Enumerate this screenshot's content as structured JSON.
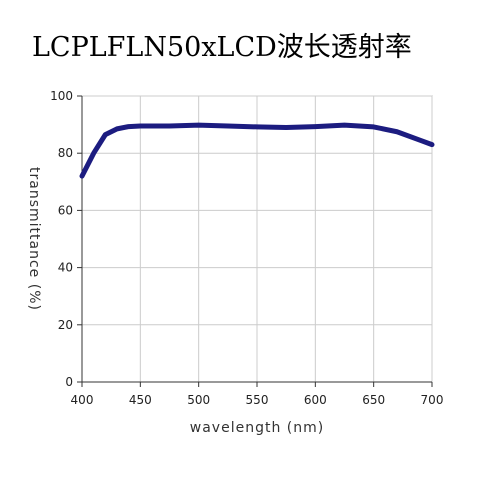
{
  "chart_data": {
    "type": "line",
    "title": "LCPLFLN50xLCD波长透射率",
    "x_label": "wavelength (nm)",
    "y_label": "transmittance (%)",
    "x": [
      400,
      410,
      420,
      430,
      440,
      450,
      475,
      500,
      525,
      550,
      575,
      600,
      625,
      650,
      670,
      690,
      700
    ],
    "series": [
      {
        "color": "#1c1c80",
        "values": [
          72,
          80,
          86.5,
          88.5,
          89.3,
          89.5,
          89.5,
          89.8,
          89.5,
          89.2,
          89,
          89.3,
          89.8,
          89.2,
          87.5,
          84.5,
          83
        ]
      }
    ],
    "xlim": [
      400,
      700
    ],
    "xticks": [
      400,
      450,
      500,
      550,
      600,
      650,
      700
    ],
    "ylim": [
      0,
      100
    ],
    "yticks": [
      0,
      20,
      40,
      60,
      80,
      100
    ],
    "grid": true
  }
}
